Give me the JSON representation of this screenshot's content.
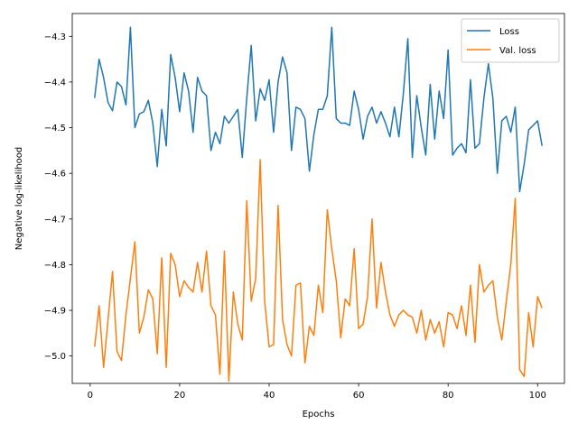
{
  "chart_data": {
    "type": "line",
    "title": "",
    "xlabel": "Epochs",
    "ylabel": "Negative log-likelihood",
    "xlim": [
      -4,
      106
    ],
    "ylim": [
      -5.06,
      -4.25
    ],
    "xticks": [
      0,
      20,
      40,
      60,
      80,
      100
    ],
    "yticks": [
      -5.0,
      -4.9,
      -4.8,
      -4.7,
      -4.6,
      -4.5,
      -4.4,
      -4.3
    ],
    "xtick_labels": [
      "0",
      "20",
      "40",
      "60",
      "80",
      "100"
    ],
    "ytick_labels": [
      "−5.0",
      "−4.9",
      "−4.8",
      "−4.7",
      "−4.6",
      "−4.5",
      "−4.4",
      "−4.3"
    ],
    "grid": false,
    "legend_position": "top-right",
    "series": [
      {
        "name": "Loss",
        "color": "#1f77b4",
        "x": [
          1,
          2,
          3,
          4,
          5,
          6,
          7,
          8,
          9,
          10,
          11,
          12,
          13,
          14,
          15,
          16,
          17,
          18,
          19,
          20,
          21,
          22,
          23,
          24,
          25,
          26,
          27,
          28,
          29,
          30,
          31,
          32,
          33,
          34,
          35,
          36,
          37,
          38,
          39,
          40,
          41,
          42,
          43,
          44,
          45,
          46,
          47,
          48,
          49,
          50,
          51,
          52,
          53,
          54,
          55,
          56,
          57,
          58,
          59,
          60,
          61,
          62,
          63,
          64,
          65,
          66,
          67,
          68,
          69,
          70,
          71,
          72,
          73,
          74,
          75,
          76,
          77,
          78,
          79,
          80,
          81,
          82,
          83,
          84,
          85,
          86,
          87,
          88,
          89,
          90,
          91,
          92,
          93,
          94,
          95,
          96,
          97,
          98,
          99,
          100,
          101
        ],
        "y": [
          -4.435,
          -4.35,
          -4.39,
          -4.445,
          -4.463,
          -4.4,
          -4.41,
          -4.45,
          -4.28,
          -4.5,
          -4.47,
          -4.465,
          -4.44,
          -4.49,
          -4.585,
          -4.46,
          -4.54,
          -4.34,
          -4.39,
          -4.465,
          -4.38,
          -4.42,
          -4.51,
          -4.39,
          -4.42,
          -4.43,
          -4.55,
          -4.51,
          -4.535,
          -4.475,
          -4.49,
          -4.475,
          -4.46,
          -4.565,
          -4.435,
          -4.32,
          -4.485,
          -4.415,
          -4.44,
          -4.395,
          -4.51,
          -4.4,
          -4.345,
          -4.38,
          -4.55,
          -4.455,
          -4.46,
          -4.48,
          -4.595,
          -4.515,
          -4.46,
          -4.46,
          -4.43,
          -4.28,
          -4.48,
          -4.49,
          -4.49,
          -4.495,
          -4.42,
          -4.46,
          -4.525,
          -4.475,
          -4.455,
          -4.49,
          -4.465,
          -4.49,
          -4.52,
          -4.455,
          -4.52,
          -4.425,
          -4.305,
          -4.565,
          -4.43,
          -4.5,
          -4.56,
          -4.405,
          -4.525,
          -4.42,
          -4.48,
          -4.33,
          -4.56,
          -4.545,
          -4.535,
          -4.555,
          -4.395,
          -4.545,
          -4.535,
          -4.435,
          -4.36,
          -4.435,
          -4.6,
          -4.485,
          -4.475,
          -4.51,
          -4.455,
          -4.64,
          -4.58,
          -4.505,
          -4.495,
          -4.485,
          -4.54
        ]
      },
      {
        "name": "Val. loss",
        "color": "#ff7f0e",
        "x": [
          1,
          2,
          3,
          4,
          5,
          6,
          7,
          8,
          9,
          10,
          11,
          12,
          13,
          14,
          15,
          16,
          17,
          18,
          19,
          20,
          21,
          22,
          23,
          24,
          25,
          26,
          27,
          28,
          29,
          30,
          31,
          32,
          33,
          34,
          35,
          36,
          37,
          38,
          39,
          40,
          41,
          42,
          43,
          44,
          45,
          46,
          47,
          48,
          49,
          50,
          51,
          52,
          53,
          54,
          55,
          56,
          57,
          58,
          59,
          60,
          61,
          62,
          63,
          64,
          65,
          66,
          67,
          68,
          69,
          70,
          71,
          72,
          73,
          74,
          75,
          76,
          77,
          78,
          79,
          80,
          81,
          82,
          83,
          84,
          85,
          86,
          87,
          88,
          89,
          90,
          91,
          92,
          93,
          94,
          95,
          96,
          97,
          98,
          99,
          100,
          101
        ],
        "y": [
          -4.98,
          -4.89,
          -5.025,
          -4.92,
          -4.815,
          -4.99,
          -5.01,
          -4.91,
          -4.83,
          -4.75,
          -4.95,
          -4.915,
          -4.855,
          -4.875,
          -4.995,
          -4.785,
          -5.025,
          -4.775,
          -4.8,
          -4.87,
          -4.835,
          -4.85,
          -4.86,
          -4.795,
          -4.86,
          -4.77,
          -4.89,
          -4.91,
          -5.04,
          -4.77,
          -5.055,
          -4.86,
          -4.93,
          -4.965,
          -4.66,
          -4.88,
          -4.83,
          -4.57,
          -4.88,
          -4.98,
          -4.975,
          -4.67,
          -4.92,
          -4.975,
          -5.0,
          -4.845,
          -4.84,
          -5.015,
          -4.935,
          -4.955,
          -4.845,
          -4.905,
          -4.68,
          -4.765,
          -4.835,
          -4.96,
          -4.875,
          -4.89,
          -4.765,
          -4.94,
          -4.93,
          -4.87,
          -4.7,
          -4.895,
          -4.795,
          -4.86,
          -4.91,
          -4.935,
          -4.91,
          -4.9,
          -4.91,
          -4.915,
          -4.95,
          -4.9,
          -4.965,
          -4.92,
          -4.95,
          -4.925,
          -4.98,
          -4.905,
          -4.91,
          -4.94,
          -4.89,
          -4.955,
          -4.845,
          -4.97,
          -4.8,
          -4.86,
          -4.845,
          -4.835,
          -4.915,
          -4.965,
          -4.88,
          -4.8,
          -4.655,
          -5.03,
          -5.045,
          -4.905,
          -4.98,
          -4.87,
          -4.895
        ]
      }
    ]
  }
}
